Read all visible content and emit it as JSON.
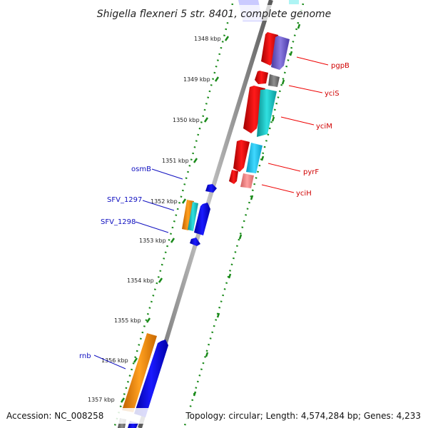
{
  "title": "Shigella flexneri 5 str. 8401, complete genome",
  "footer": {
    "accession": "Accession: NC_008258",
    "info": "Topology: circular; Length: 4,574,284 bp; Genes: 4,233"
  },
  "ticks": [
    "1348 kbp",
    "1349 kbp",
    "1350 kbp",
    "1351 kbp",
    "1352 kbp",
    "1353 kbp",
    "1354 kbp",
    "1355 kbp",
    "1356 kbp",
    "1357 kbp"
  ],
  "reverse_labels": [
    "osmB",
    "SFV_1297",
    "SFV_1298",
    "rnb"
  ],
  "forward_labels": [
    "pgpB",
    "yciS",
    "yciM",
    "pyrF",
    "yciH"
  ],
  "colors": {
    "backbone": "#808080",
    "tick_green": "#1a8a1a",
    "forward_label": "#d00000",
    "reverse_label": "#1010c0",
    "red": "#ee0000",
    "blue": "#0000ee",
    "cyan": "#18c8c8",
    "orange": "#ff8c00",
    "purple": "#6a5acd",
    "gray": "#707070",
    "skyblue": "#1ec8f0",
    "salmon": "#f08080"
  }
}
